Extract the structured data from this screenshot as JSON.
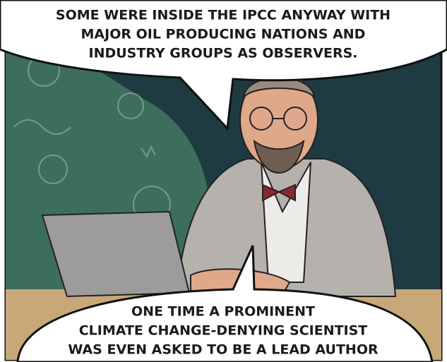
{
  "bubbles": [
    {
      "lines": [
        "SOME WERE INSIDE THE IPCC ANYWAY WITH",
        "MAJOR OIL PRODUCING NATIONS AND",
        "INDUSTRY GROUPS AS OBSERVERS."
      ]
    },
    {
      "lines": [
        "ONE TIME A PROMINENT",
        "CLIMATE CHANGE-DENYING SCIENTIST",
        "WAS EVEN ASKED TO BE A LEAD AUTHOR"
      ]
    }
  ]
}
